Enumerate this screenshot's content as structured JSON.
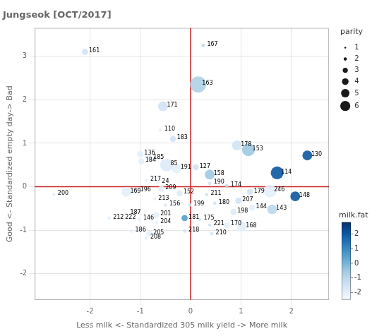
{
  "chart_data": {
    "type": "scatter",
    "title": "Jungseok [OCT/2017]",
    "xlabel": "Less milk <- Standardized 305 milk yield -> More milk",
    "ylabel": "Good <- Standardized empty day-> Bad",
    "labels": [
      "161",
      "167",
      "163",
      "171",
      "110",
      "183",
      "136",
      "185",
      "184",
      "85",
      "191",
      "127",
      "158",
      "178",
      "153",
      "114",
      "130",
      "217",
      "24",
      "190",
      "174",
      "169",
      "196",
      "200",
      "209",
      "152",
      "213",
      "211",
      "179",
      "246",
      "148",
      "156",
      "199",
      "180",
      "207",
      "198",
      "144",
      "143",
      "187",
      "201",
      "212",
      "222",
      "146",
      "181",
      "175",
      "204",
      "221",
      "170",
      "168",
      "186",
      "205",
      "218",
      "208",
      "210"
    ],
    "x": [
      -2.1,
      0.25,
      0.15,
      -0.55,
      -0.6,
      -0.35,
      -1.0,
      -0.82,
      -0.98,
      -0.48,
      -0.28,
      0.1,
      0.38,
      0.92,
      1.15,
      1.72,
      2.32,
      -0.88,
      -0.65,
      0.38,
      0.72,
      -1.28,
      -1.08,
      -2.72,
      -0.58,
      -0.22,
      -0.72,
      0.32,
      1.18,
      1.58,
      2.08,
      -0.5,
      -0.02,
      0.48,
      0.95,
      0.85,
      1.22,
      1.62,
      -1.28,
      -0.68,
      -1.62,
      -1.38,
      -1.02,
      -0.12,
      0.18,
      -0.68,
      0.38,
      0.72,
      1.02,
      -1.18,
      -0.82,
      -0.12,
      -0.88,
      0.42
    ],
    "y": [
      3.1,
      3.25,
      2.35,
      1.85,
      1.3,
      1.1,
      0.75,
      0.65,
      0.58,
      0.5,
      0.42,
      0.45,
      0.28,
      0.95,
      0.85,
      0.32,
      0.72,
      0.15,
      0.1,
      0.08,
      0.02,
      -0.12,
      -0.1,
      -0.18,
      -0.05,
      -0.15,
      -0.28,
      -0.18,
      -0.12,
      -0.1,
      -0.22,
      -0.42,
      -0.42,
      -0.38,
      -0.32,
      -0.58,
      -0.48,
      -0.52,
      -0.62,
      -0.65,
      -0.72,
      -0.72,
      -0.75,
      -0.72,
      -0.75,
      -0.82,
      -0.88,
      -0.88,
      -0.92,
      -1.02,
      -1.08,
      -1.02,
      -1.18,
      -1.08
    ],
    "parity": [
      2,
      1,
      5,
      3,
      1,
      2,
      2,
      2,
      2,
      4,
      3,
      2,
      3,
      3,
      4,
      4,
      3,
      1,
      1,
      1,
      1,
      3,
      2,
      1,
      2,
      2,
      1,
      1,
      2,
      4,
      3,
      1,
      1,
      1,
      2,
      2,
      2,
      3,
      1,
      2,
      1,
      1,
      1,
      2,
      1,
      1,
      1,
      2,
      3,
      1,
      2,
      1,
      1,
      1
    ],
    "milk_fat": [
      -1.5,
      -1.0,
      -0.8,
      -1.5,
      -2.0,
      -1.5,
      -2.0,
      -2.0,
      -2.0,
      -1.8,
      -2.0,
      -1.5,
      -0.5,
      -1.5,
      -0.5,
      2.0,
      2.0,
      -2.0,
      -2.0,
      -1.5,
      -1.0,
      -2.0,
      -2.0,
      -2.0,
      -2.0,
      -1.8,
      -2.0,
      -1.5,
      -1.5,
      -2.0,
      2.0,
      -1.8,
      -1.5,
      -1.5,
      -1.5,
      -1.8,
      -2.0,
      -1.0,
      -2.0,
      -2.0,
      -2.0,
      -2.0,
      -2.0,
      0.5,
      -1.5,
      -2.0,
      -1.5,
      -2.0,
      -2.0,
      -2.0,
      -2.0,
      -1.5,
      -2.0,
      -1.5
    ],
    "xlim": [
      -3.1,
      2.75
    ],
    "ylim": [
      -2.6,
      3.65
    ],
    "xticks": [
      -2,
      -1,
      0,
      1,
      2
    ],
    "yticks": [
      -2,
      -1,
      0,
      1,
      2,
      3
    ],
    "grid": true,
    "crosshairs": {
      "x": 0,
      "y": 0,
      "color": "#cc2222"
    },
    "size_legend": {
      "title": "parity",
      "values": [
        1,
        2,
        3,
        4,
        5,
        6
      ]
    },
    "colorbar": {
      "label": "milk.fat",
      "range": [
        -2.5,
        2.8
      ],
      "ticks": [
        -2,
        -1,
        0,
        1,
        2
      ]
    }
  }
}
